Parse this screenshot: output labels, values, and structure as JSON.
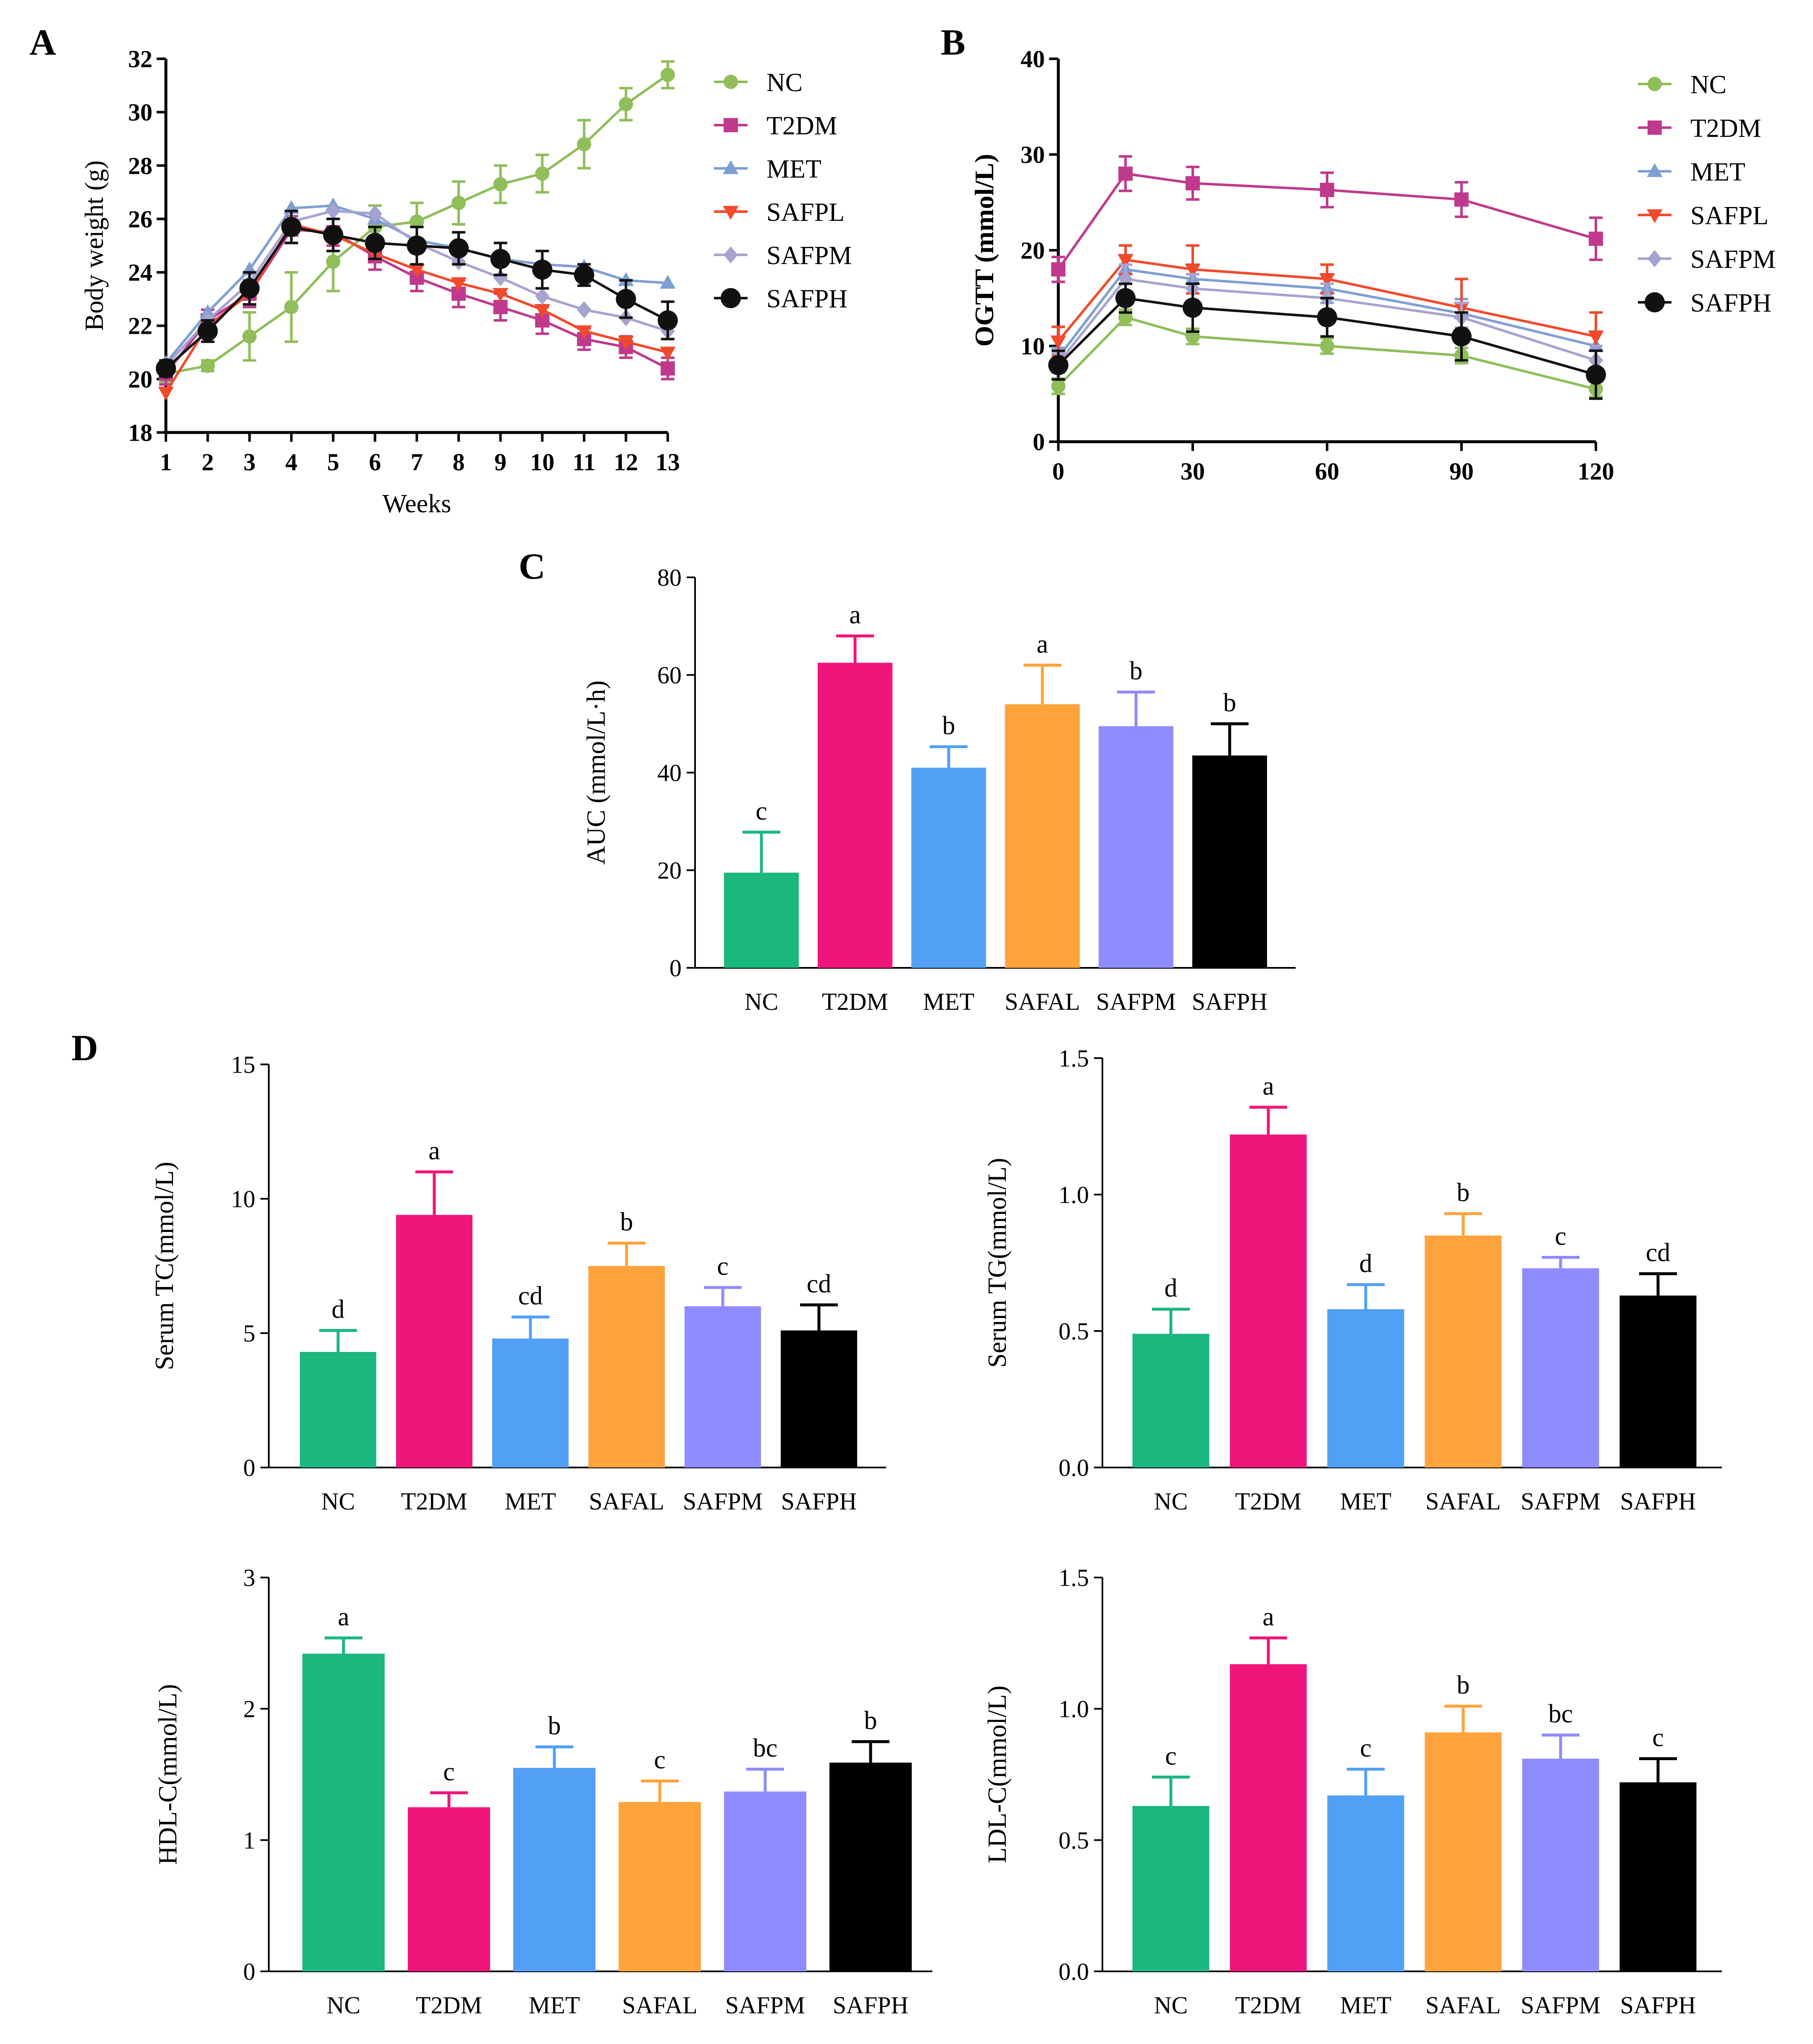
{
  "chart_data": [
    {
      "id": "A",
      "type": "line",
      "panel_label": "A",
      "xlabel": "Weeks",
      "ylabel": "Body weight (g)",
      "x": [
        1,
        2,
        3,
        4,
        5,
        6,
        7,
        8,
        9,
        10,
        11,
        12,
        13
      ],
      "xlim": [
        1,
        13
      ],
      "ylim": [
        18,
        32
      ],
      "yticks": [
        18,
        20,
        22,
        24,
        26,
        28,
        30,
        32
      ],
      "series": [
        {
          "name": "NC",
          "color": "#8fbe5a",
          "marker": "circle",
          "values": [
            20.2,
            20.5,
            21.6,
            22.7,
            24.4,
            25.7,
            25.9,
            26.6,
            27.3,
            27.7,
            28.8,
            30.3,
            31.4
          ],
          "err": [
            0.3,
            0.2,
            0.9,
            1.3,
            1.1,
            0.8,
            0.7,
            0.8,
            0.7,
            0.7,
            0.9,
            0.6,
            0.5
          ]
        },
        {
          "name": "T2DM",
          "color": "#bf3a8c",
          "marker": "square",
          "values": [
            20.2,
            22.2,
            23.2,
            25.6,
            25.5,
            24.6,
            23.8,
            23.2,
            22.7,
            22.2,
            21.5,
            21.2,
            20.4
          ],
          "err": [
            0.4,
            0.4,
            0.5,
            0.5,
            0.5,
            0.5,
            0.5,
            0.5,
            0.5,
            0.5,
            0.4,
            0.4,
            0.4
          ]
        },
        {
          "name": "MET",
          "color": "#7f9fd3",
          "marker": "triangle-up",
          "values": [
            20.6,
            22.5,
            24.1,
            26.4,
            26.5,
            26.0,
            25.2,
            24.9,
            24.5,
            24.3,
            24.2,
            23.7,
            23.6
          ]
        },
        {
          "name": "SAFPL",
          "color": "#f04a2b",
          "marker": "triangle-down",
          "values": [
            19.5,
            22.0,
            23.2,
            25.8,
            25.4,
            24.7,
            24.1,
            23.6,
            23.2,
            22.6,
            21.8,
            21.4,
            21.0
          ]
        },
        {
          "name": "SAFPM",
          "color": "#a7a3d0",
          "marker": "diamond",
          "values": [
            20.5,
            22.2,
            23.6,
            25.9,
            26.3,
            26.2,
            25.1,
            24.4,
            23.8,
            23.1,
            22.6,
            22.3,
            21.8
          ]
        },
        {
          "name": "SAFPH",
          "color": "#111111",
          "marker": "circle",
          "values": [
            20.4,
            21.8,
            23.4,
            25.7,
            25.4,
            25.1,
            25.0,
            24.9,
            24.5,
            24.1,
            23.9,
            23.0,
            22.2
          ],
          "err": [
            0.3,
            0.4,
            0.6,
            0.6,
            0.6,
            0.6,
            0.7,
            0.6,
            0.6,
            0.7,
            0.4,
            0.7,
            0.7
          ]
        }
      ]
    },
    {
      "id": "B",
      "type": "line",
      "panel_label": "B",
      "xlabel": "",
      "ylabel": "OGTT (mmol/L)",
      "x": [
        0,
        15,
        30,
        60,
        90,
        120
      ],
      "xticks": [
        0,
        30,
        60,
        90,
        120
      ],
      "xlim": [
        0,
        120
      ],
      "ylim": [
        0,
        40
      ],
      "yticks": [
        0,
        10,
        20,
        30,
        40
      ],
      "series": [
        {
          "name": "NC",
          "color": "#8fbe5a",
          "marker": "circle",
          "values": [
            5.8,
            13.0,
            11.0,
            10.0,
            9.0,
            5.5
          ],
          "err": [
            0.8,
            0.8,
            0.8,
            0.8,
            0.8,
            0.8
          ]
        },
        {
          "name": "T2DM",
          "color": "#bf3a8c",
          "marker": "square",
          "values": [
            18.0,
            28.0,
            27.0,
            26.3,
            25.3,
            21.2
          ],
          "err": [
            1.3,
            1.8,
            1.7,
            1.8,
            1.8,
            2.2
          ]
        },
        {
          "name": "MET",
          "color": "#7f9fd3",
          "marker": "triangle-up",
          "values": [
            8.8,
            18.0,
            17.0,
            16.0,
            13.4,
            10.0
          ],
          "err": [
            1.0,
            1.5,
            1.5,
            1.5,
            1.5,
            1.5
          ]
        },
        {
          "name": "SAFPL",
          "color": "#f04a2b",
          "marker": "triangle-down",
          "values": [
            10.5,
            19.0,
            18.0,
            17.0,
            14.0,
            11.0
          ],
          "err": [
            1.5,
            1.5,
            2.5,
            1.5,
            3.0,
            2.5
          ]
        },
        {
          "name": "SAFPM",
          "color": "#a7a3d0",
          "marker": "diamond",
          "values": [
            8.2,
            17.0,
            16.0,
            15.0,
            13.0,
            8.5
          ],
          "err": [
            1.0,
            1.5,
            1.5,
            1.5,
            1.5,
            1.5
          ]
        },
        {
          "name": "SAFPH",
          "color": "#111111",
          "marker": "circle",
          "values": [
            8.0,
            15.0,
            14.0,
            13.0,
            11.0,
            7.0
          ],
          "err": [
            1.5,
            1.5,
            2.5,
            2.0,
            2.5,
            2.5
          ]
        }
      ]
    },
    {
      "id": "C",
      "type": "bar",
      "panel_label": "C",
      "ylabel": "AUC (mmol/L·h)",
      "categories": [
        "NC",
        "T2DM",
        "MET",
        "SAFAL",
        "SAFPM",
        "SAFPH"
      ],
      "values": [
        19.5,
        62.5,
        41.0,
        54.0,
        49.5,
        43.5
      ],
      "err": [
        8.3,
        5.5,
        4.3,
        8.0,
        7.0,
        6.5
      ],
      "letters": [
        "c",
        "a",
        "b",
        "a",
        "b",
        "b"
      ],
      "ylim": [
        0,
        80
      ],
      "yticks": [
        0,
        20,
        40,
        60,
        80
      ]
    },
    {
      "id": "D1",
      "type": "bar",
      "panel_label": "D",
      "ylabel": "Serum TC(mmol/L)",
      "categories": [
        "NC",
        "T2DM",
        "MET",
        "SAFAL",
        "SAFPM",
        "SAFPH"
      ],
      "values": [
        4.3,
        9.4,
        4.8,
        7.5,
        6.0,
        5.1
      ],
      "err": [
        0.8,
        1.6,
        0.8,
        0.85,
        0.7,
        0.95
      ],
      "letters": [
        "d",
        "a",
        "cd",
        "b",
        "c",
        "cd"
      ],
      "ylim": [
        0,
        15
      ],
      "yticks": [
        0,
        5,
        10,
        15
      ]
    },
    {
      "id": "D2",
      "type": "bar",
      "ylabel": "Serum TG(mmol/L)",
      "categories": [
        "NC",
        "T2DM",
        "MET",
        "SAFAL",
        "SAFPM",
        "SAFPH"
      ],
      "values": [
        0.49,
        1.22,
        0.58,
        0.85,
        0.73,
        0.63
      ],
      "err": [
        0.09,
        0.1,
        0.09,
        0.08,
        0.04,
        0.08
      ],
      "letters": [
        "d",
        "a",
        "d",
        "b",
        "c",
        "cd"
      ],
      "ylim": [
        0,
        1.5
      ],
      "yticks": [
        "0.0",
        "0.5",
        "1.0",
        "1.5"
      ]
    },
    {
      "id": "D3",
      "type": "bar",
      "ylabel": "HDL-C(mmol/L)",
      "categories": [
        "NC",
        "T2DM",
        "MET",
        "SAFAL",
        "SAFPM",
        "SAFPH"
      ],
      "values": [
        2.42,
        1.25,
        1.55,
        1.29,
        1.37,
        1.59
      ],
      "err": [
        0.12,
        0.11,
        0.16,
        0.16,
        0.17,
        0.16
      ],
      "letters": [
        "a",
        "c",
        "b",
        "c",
        "bc",
        "b"
      ],
      "ylim": [
        0,
        3
      ],
      "yticks": [
        0,
        1,
        2,
        3
      ]
    },
    {
      "id": "D4",
      "type": "bar",
      "ylabel": "LDL-C(mmol/L)",
      "categories": [
        "NC",
        "T2DM",
        "MET",
        "SAFAL",
        "SAFPM",
        "SAFPH"
      ],
      "values": [
        0.63,
        1.17,
        0.67,
        0.91,
        0.81,
        0.72
      ],
      "err": [
        0.11,
        0.1,
        0.1,
        0.1,
        0.09,
        0.09
      ],
      "letters": [
        "c",
        "a",
        "c",
        "b",
        "bc",
        "c"
      ],
      "ylim": [
        0,
        1.5
      ],
      "yticks": [
        "0.0",
        "0.5",
        "1.0",
        "1.5"
      ]
    }
  ],
  "bar_colors": [
    "#1ab77e",
    "#f0157a",
    "#52a0f5",
    "#ffa33c",
    "#8f8cff",
    "#000000"
  ]
}
